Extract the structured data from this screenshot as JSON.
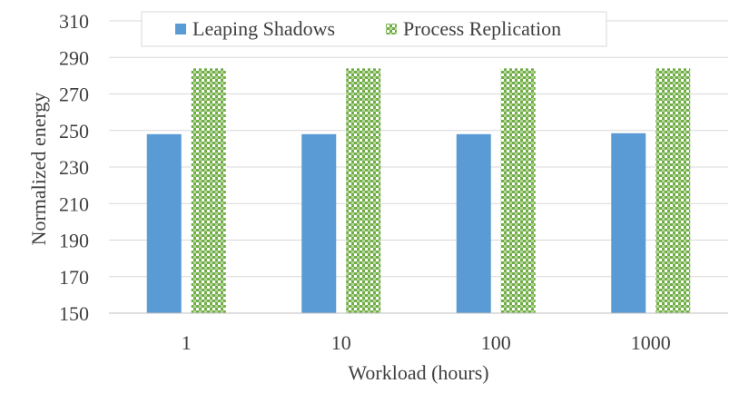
{
  "chart_data": {
    "type": "bar",
    "title": "",
    "xlabel": "Workload (hours)",
    "ylabel": "Normalized energy",
    "categories": [
      "1",
      "10",
      "100",
      "1000"
    ],
    "series": [
      {
        "name": "Leaping Shadows",
        "values": [
          248,
          248,
          248,
          248.5
        ],
        "color": "#5b9bd5",
        "pattern": "solid"
      },
      {
        "name": "Process Replication",
        "values": [
          284,
          284,
          284,
          284
        ],
        "color": "#70ad47",
        "pattern": "checkered"
      }
    ],
    "ylim": [
      150,
      310
    ],
    "yticks": [
      150,
      170,
      190,
      210,
      230,
      250,
      270,
      290,
      310
    ],
    "grid": true,
    "legend_position": "top"
  }
}
